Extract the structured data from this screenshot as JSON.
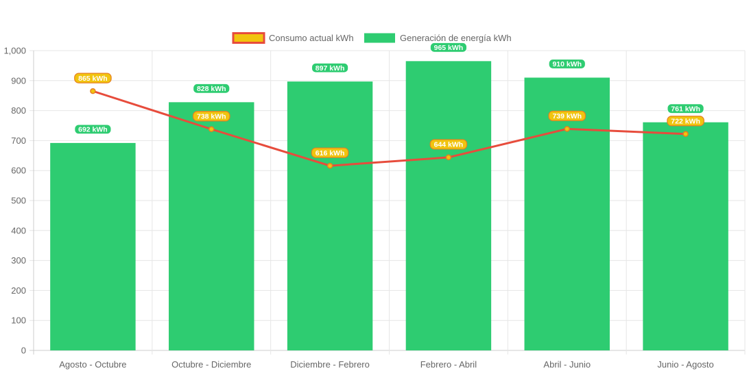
{
  "chart_data": {
    "type": "bar",
    "categories": [
      "Agosto - Octubre",
      "Octubre - Diciembre",
      "Diciembre - Febrero",
      "Febrero - Abril",
      "Abril - Junio",
      "Junio - Agosto"
    ],
    "series": [
      {
        "name": "Generación de energía kWh",
        "type": "bar",
        "color": "#2ecc71",
        "values": [
          692,
          828,
          897,
          965,
          910,
          761
        ],
        "labels": [
          "692 kWh",
          "828 kWh",
          "897 kWh",
          "965 kWh",
          "910 kWh",
          "761 kWh"
        ]
      },
      {
        "name": "Consumo actual kWh",
        "type": "line",
        "color": "#e74c3c",
        "fill_color": "#f1c40f",
        "values": [
          865,
          738,
          616,
          644,
          739,
          722
        ],
        "labels": [
          "865 kWh",
          "738 kWh",
          "616 kWh",
          "644 kWh",
          "739 kWh",
          "722 kWh"
        ]
      }
    ],
    "ylim": [
      0,
      1000
    ],
    "yticks": [
      "0",
      "100",
      "200",
      "300",
      "400",
      "500",
      "600",
      "700",
      "800",
      "900",
      "1,000"
    ],
    "legend": [
      "Consumo actual kWh",
      "Generación de energía kWh"
    ],
    "legend_position": "top",
    "grid": true
  }
}
